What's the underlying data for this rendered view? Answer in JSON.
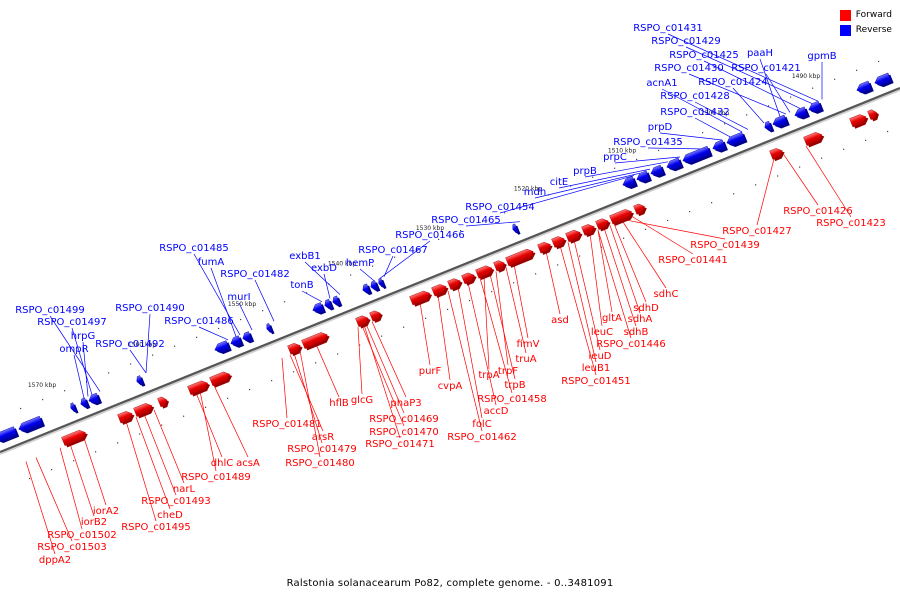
{
  "legend": {
    "forward_label": "Forward",
    "reverse_label": "Reverse",
    "forward_color": "#ff0000",
    "reverse_color": "#0000ff"
  },
  "caption": "Ralstonia solanacearum Po82, complete genome. - 0..3481091",
  "ticks": [
    "1570 kbp",
    "1560 kbp",
    "1550 kbp",
    "1540 kbp",
    "1530 kbp",
    "1520 kbp",
    "1510 kbp",
    "1500 kbp",
    "1490 kbp"
  ],
  "reverse_labels": [
    "RSPO_c01431",
    "RSPO_c01429",
    "RSPO_c01425",
    "RSPO_c01430",
    "paaH",
    "RSPO_c01421",
    "gpmB",
    "acnA1",
    "RSPO_c01424",
    "RSPO_c01428",
    "RSPO_c01432",
    "prpD",
    "RSPO_c01435",
    "prpC",
    "prpB",
    "citE",
    "mdh",
    "RSPO_c01454",
    "RSPO_c01465",
    "RSPO_c01466",
    "RSPO_c01467",
    "hemP",
    "exbB1",
    "exbD",
    "tonB",
    "RSPO_c01485",
    "fumA",
    "RSPO_c01482",
    "murI",
    "RSPO_c01486",
    "RSPO_c01490",
    "RSPO_c01499",
    "RSPO_c01497",
    "hrpG",
    "ompR",
    "RSPO_c01492"
  ],
  "forward_labels": [
    "RSPO_c01426",
    "RSPO_c01423",
    "RSPO_c01427",
    "RSPO_c01439",
    "RSPO_c01441",
    "sdhC",
    "sdhD",
    "sdhA",
    "gltA",
    "sdhB",
    "leuC",
    "RSPO_c01446",
    "asd",
    "leuD",
    "leuB1",
    "RSPO_c01451",
    "fimV",
    "truA",
    "trpF",
    "trpA",
    "trpB",
    "RSPO_c01458",
    "accD",
    "folC",
    "RSPO_c01462",
    "purF",
    "cvpA",
    "phaP3",
    "glcG",
    "RSPO_c01469",
    "RSPO_c01470",
    "RSPO_c01471",
    "hflB",
    "RSPO_c01481",
    "arsR",
    "RSPO_c01479",
    "RSPO_c01480",
    "acsA",
    "dhlC",
    "RSPO_c01489",
    "narL",
    "RSPO_c01493",
    "cheD",
    "RSPO_c01495",
    "iorA2",
    "iorB2",
    "RSPO_c01502",
    "RSPO_c01503",
    "dppA2"
  ]
}
